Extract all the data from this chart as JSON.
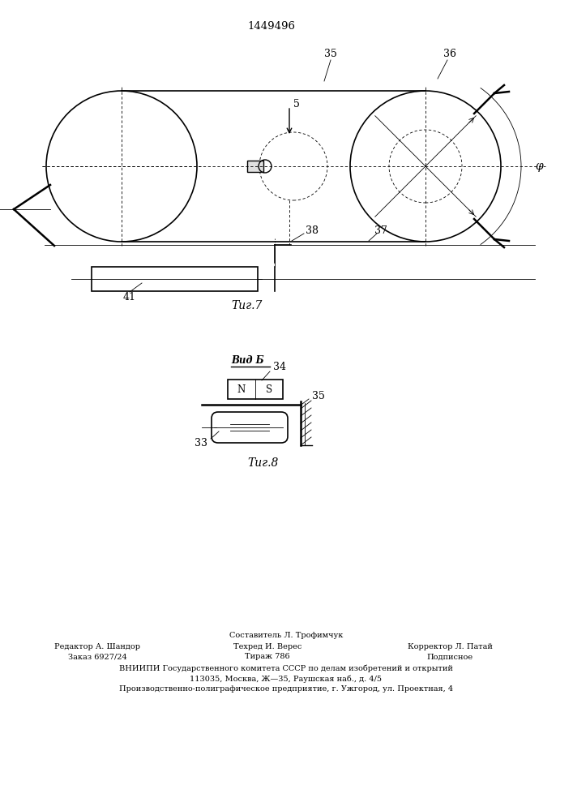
{
  "patent_number": "1449496",
  "fig7_label": "Τиг.7",
  "fig8_label": "Τиг.8",
  "vid_b_label": "видБ",
  "labels": {
    "35": "35",
    "36": "36",
    "5": "5",
    "38": "38",
    "37": "37",
    "phi": "φ",
    "41": "41",
    "34": "34",
    "35b": "35",
    "33": "33"
  },
  "footer_text1": "Составитель Л. Трофимчук",
  "footer_col1_line1": "Редактор А. Шандор",
  "footer_col1_line2": "Заказ 6927/24",
  "footer_col2_line1": "Техред И. Верес",
  "footer_col2_line2": "Тираж 786",
  "footer_col3_line1": "Корректор Л. Патай",
  "footer_col3_line2": "Подписное",
  "footer_vniipи": "ВНИИПИ Государственного комитета СССР по делам изобретений и открытий",
  "footer_address1": "113035, Москва, Ж—35, Раушская наб., д. 4/5",
  "footer_address2": "Производственно-полиграфическое предприятие, г. Ужгород, ул. Проектная, 4"
}
